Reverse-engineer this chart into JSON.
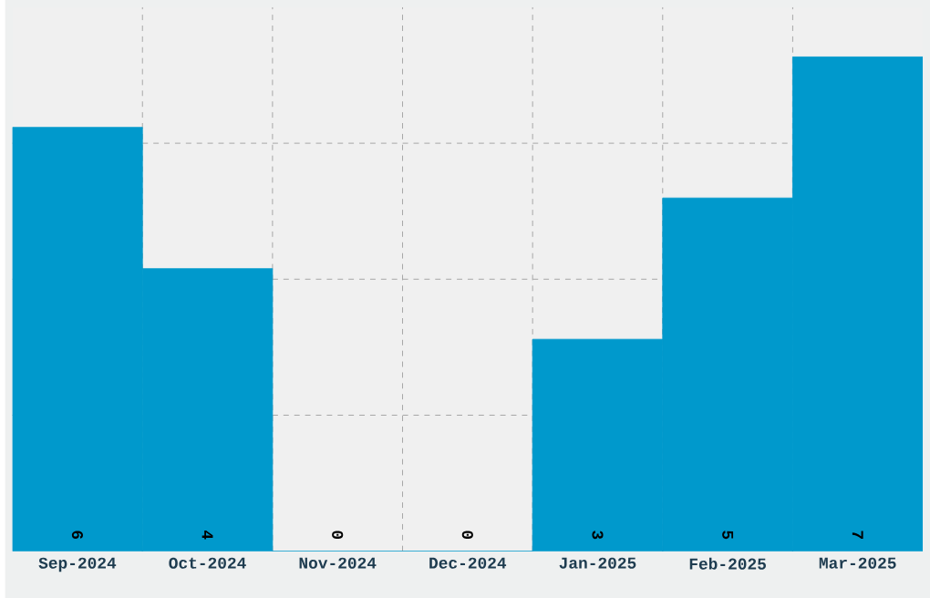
{
  "chart_data": {
    "type": "bar",
    "categories": [
      "Sep-2024",
      "Oct-2024",
      "Nov-2024",
      "Dec-2024",
      "Jan-2025",
      "Feb-2025",
      "Mar-2025"
    ],
    "values": [
      6,
      4,
      0,
      0,
      3,
      5,
      7
    ],
    "color": "#0099cc",
    "ylim": [
      0,
      7.7
    ],
    "yticks": [
      {
        "value": 1.925,
        "label": null
      },
      {
        "value": 3.85,
        "label": null
      },
      {
        "value": 5.775,
        "label": null
      }
    ],
    "grid": true,
    "tick_labels": "x",
    "data_labels": true
  }
}
